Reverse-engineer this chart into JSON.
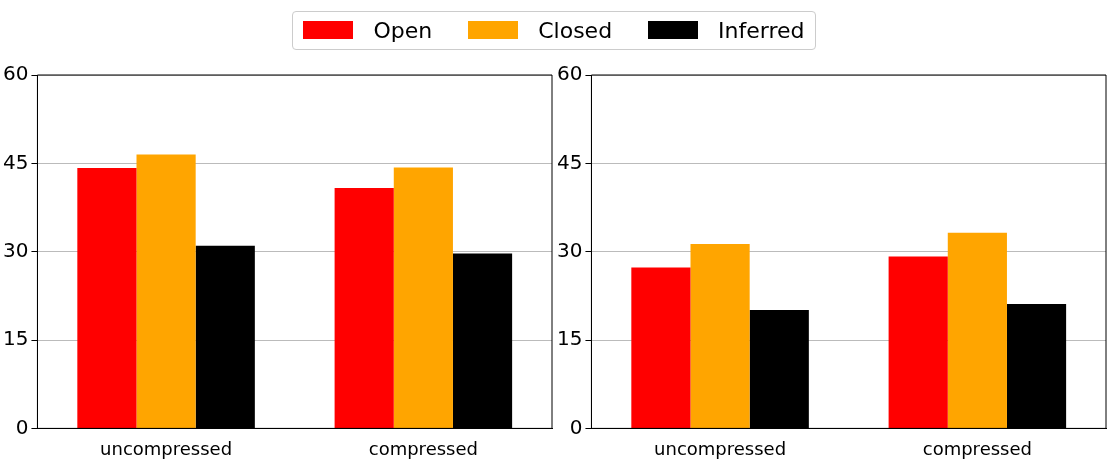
{
  "chart_data": [
    {
      "type": "bar",
      "categories": [
        "uncompressed",
        "compressed"
      ],
      "series": [
        {
          "name": "Open",
          "color": "#ff0000",
          "values": [
            44.2,
            40.8
          ]
        },
        {
          "name": "Closed",
          "color": "#ffa500",
          "values": [
            46.5,
            44.3
          ]
        },
        {
          "name": "Inferred",
          "color": "#000000",
          "values": [
            31.0,
            29.7
          ]
        }
      ],
      "ylim": [
        0,
        60
      ],
      "yticks": [
        0,
        15,
        30,
        45,
        60
      ],
      "grid": "y",
      "legend": "top"
    },
    {
      "type": "bar",
      "categories": [
        "uncompressed",
        "compressed"
      ],
      "series": [
        {
          "color": "#ff0000",
          "values": [
            27.3,
            29.2
          ]
        },
        {
          "color": "#ffa500",
          "values": [
            31.3,
            33.2
          ]
        },
        {
          "color": "#000000",
          "values": [
            20.1,
            21.1
          ]
        }
      ],
      "ylim": [
        0,
        60
      ],
      "yticks": [
        0,
        15,
        30,
        45,
        60
      ],
      "grid": "y"
    }
  ]
}
